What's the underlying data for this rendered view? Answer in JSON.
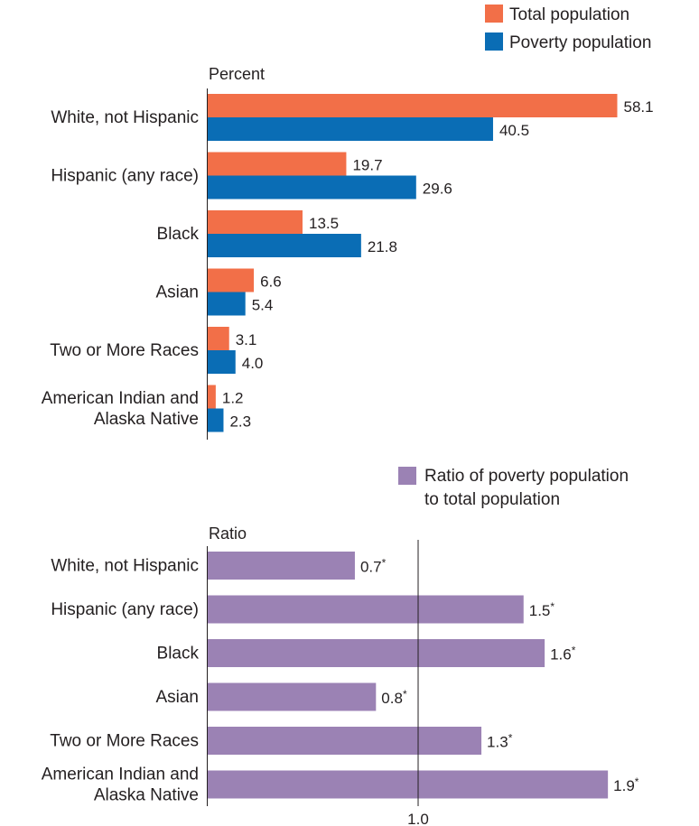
{
  "chart_data": [
    {
      "type": "bar",
      "orientation": "horizontal",
      "unit_label": "Percent",
      "legend_position": "top-right",
      "grid": false,
      "xlim": [
        0,
        80
      ],
      "categories": [
        [
          "White, not Hispanic"
        ],
        [
          "Hispanic (any race)"
        ],
        [
          "Black"
        ],
        [
          "Asian"
        ],
        [
          "Two or More Races"
        ],
        [
          "American Indian and",
          "Alaska Native"
        ]
      ],
      "series": [
        {
          "name": "Total population",
          "color": "#f26f48",
          "values": [
            58.1,
            19.7,
            13.5,
            6.6,
            3.1,
            1.2
          ],
          "labels": [
            "58.1",
            "19.7",
            "13.5",
            "6.6",
            "3.1",
            "1.2"
          ]
        },
        {
          "name": "Poverty population",
          "color": "#0a6db5",
          "values": [
            40.5,
            29.6,
            21.8,
            5.4,
            4.0,
            2.3
          ],
          "labels": [
            "40.5",
            "29.6",
            "21.8",
            "5.4",
            "4.0",
            "2.3"
          ]
        }
      ]
    },
    {
      "type": "bar",
      "orientation": "horizontal",
      "unit_label": "Ratio",
      "legend_position": "top-right",
      "grid": false,
      "xlim": [
        0,
        2.0
      ],
      "reference_line": 1.0,
      "xticks": [
        "1.0"
      ],
      "categories": [
        [
          "White, not Hispanic"
        ],
        [
          "Hispanic (any race)"
        ],
        [
          "Black"
        ],
        [
          "Asian"
        ],
        [
          "Two or More Races"
        ],
        [
          "American Indian and",
          "Alaska Native"
        ]
      ],
      "series": [
        {
          "name": [
            "Ratio of poverty population",
            "to total population"
          ],
          "color": "#9b82b4",
          "values": [
            0.7,
            1.5,
            1.6,
            0.8,
            1.3,
            1.9
          ],
          "labels": [
            "0.7",
            "1.5",
            "1.6",
            "0.8",
            "1.3",
            "1.9"
          ],
          "marker": "*"
        }
      ]
    }
  ]
}
